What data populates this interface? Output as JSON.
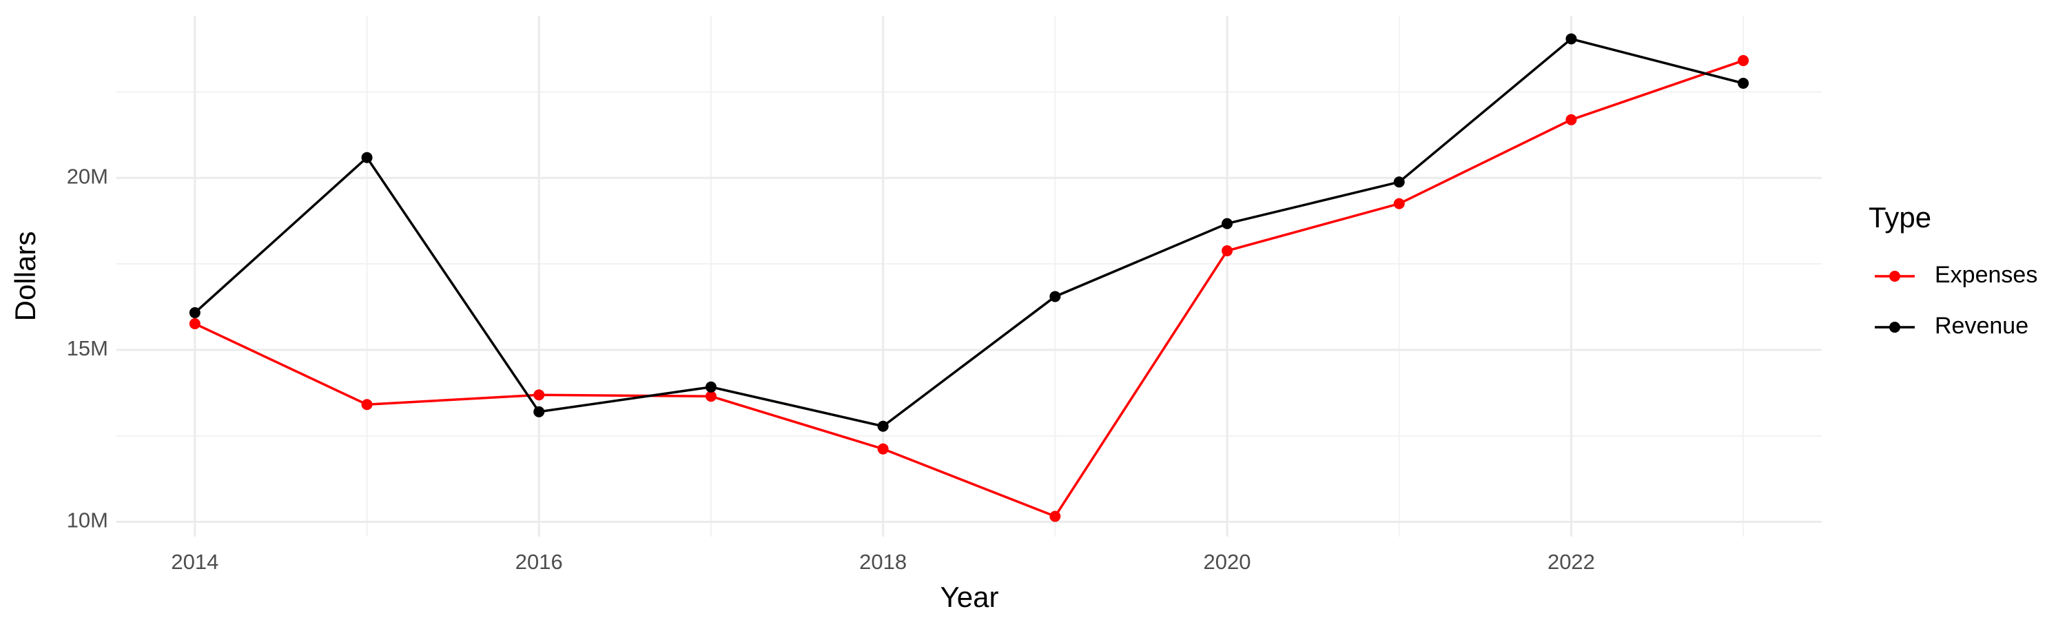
{
  "chart_data": {
    "type": "line",
    "x_label": "Year",
    "y_label": "Dollars",
    "x": [
      2014,
      2015,
      2016,
      2017,
      2018,
      2019,
      2020,
      2021,
      2022,
      2023
    ],
    "series": [
      {
        "name": "Expenses",
        "color": "#ff0000",
        "values": [
          15760000,
          13410000,
          13690000,
          13650000,
          12120000,
          10160000,
          17880000,
          19250000,
          21690000,
          23410000
        ]
      },
      {
        "name": "Revenue",
        "color": "#000000",
        "values": [
          16080000,
          20590000,
          13200000,
          13920000,
          12780000,
          16550000,
          18670000,
          19880000,
          24040000,
          22750000
        ]
      }
    ],
    "xlim": [
      2013.544,
      2023.456
    ],
    "xticks": [
      2014,
      2016,
      2018,
      2020,
      2022
    ],
    "x_minor_ticks": [
      2015,
      2017,
      2019,
      2021,
      2023
    ],
    "ylim": [
      9570000,
      24710000
    ],
    "yticks": [
      {
        "value": 10000000,
        "label": "10M"
      },
      {
        "value": 15000000,
        "label": "15M"
      },
      {
        "value": 20000000,
        "label": "20M"
      }
    ],
    "y_minor_ticks": [
      12500000,
      17500000,
      22500000
    ],
    "grid": true,
    "legend": {
      "title": "Type",
      "position": "right"
    }
  }
}
